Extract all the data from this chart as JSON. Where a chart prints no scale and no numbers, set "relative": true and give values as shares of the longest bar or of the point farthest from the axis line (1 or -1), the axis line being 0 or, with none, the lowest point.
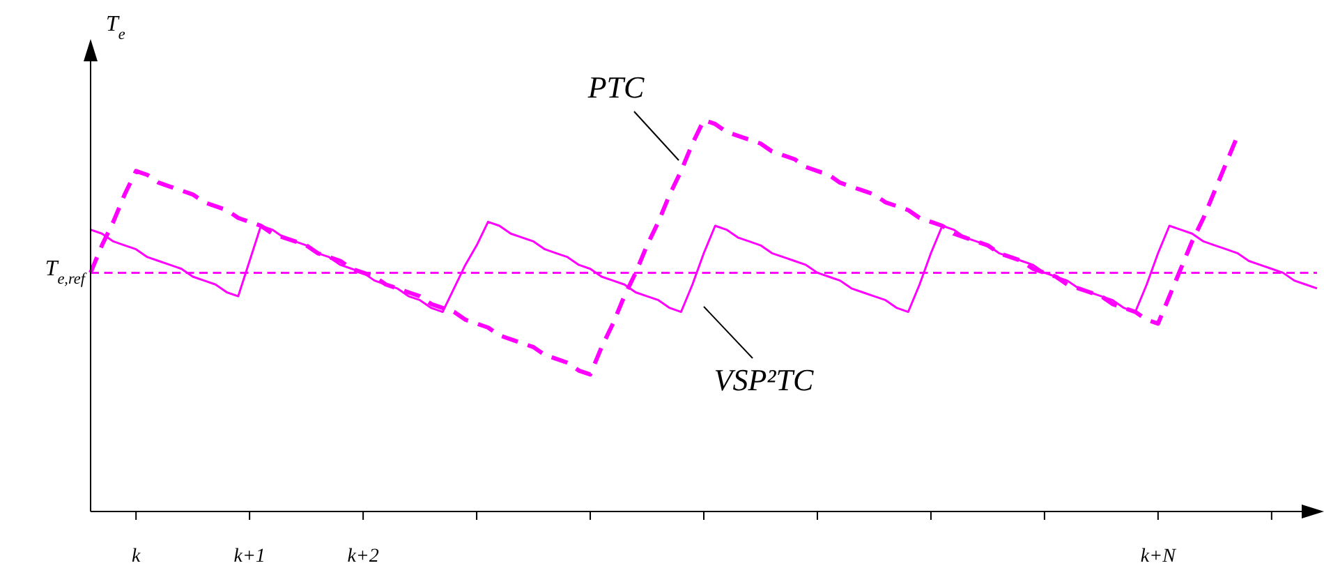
{
  "chart_data": {
    "type": "line",
    "relative": true,
    "ylabel": "T$_{e}$",
    "marker": "none",
    "categories": [
      null,
      null,
      null,
      null,
      "k",
      null,
      null,
      null,
      null,
      null,
      null,
      null,
      null,
      null,
      "k+1",
      null,
      null,
      null,
      null,
      null,
      null,
      null,
      null,
      null,
      "k+2",
      null,
      null,
      null,
      null,
      null,
      null,
      null,
      null,
      null,
      null,
      null,
      null,
      null,
      null,
      null,
      null,
      null,
      null,
      null,
      null,
      null,
      null,
      null,
      null,
      null,
      null,
      null,
      null,
      null,
      null,
      null,
      null,
      null,
      null,
      null,
      null,
      null,
      null,
      null,
      null,
      null,
      null,
      null,
      null,
      null,
      null,
      null,
      null,
      null,
      null,
      null,
      null,
      null,
      null,
      null,
      null,
      null,
      null,
      null,
      null,
      null,
      null,
      null,
      null,
      null,
      null,
      null,
      null,
      null,
      "k+N",
      null,
      null,
      null,
      null,
      null,
      null,
      null,
      null,
      null,
      null,
      null,
      null,
      null,
      null
    ],
    "series": [
      {
        "name": "PTC",
        "color": "#ff00ff",
        "line_style": "dashed",
        "values": [
          0.61,
          0.68,
          0.74,
          0.81,
          0.87,
          0.86,
          0.84,
          0.83,
          0.82,
          0.81,
          0.79,
          0.78,
          0.77,
          0.75,
          0.74,
          0.73,
          0.71,
          0.7,
          0.69,
          0.68,
          0.66,
          0.65,
          0.64,
          0.62,
          0.61,
          0.6,
          0.58,
          0.57,
          0.56,
          0.55,
          0.53,
          0.52,
          0.51,
          0.49,
          0.48,
          0.47,
          0.45,
          0.44,
          0.43,
          0.42,
          0.4,
          0.39,
          0.38,
          0.36,
          0.35,
          0.42,
          0.48,
          0.55,
          0.61,
          0.68,
          0.74,
          0.81,
          0.87,
          0.94,
          1.0,
          0.99,
          0.97,
          0.96,
          0.95,
          0.94,
          0.92,
          0.91,
          0.9,
          0.88,
          0.87,
          0.86,
          0.84,
          0.83,
          0.82,
          0.81,
          0.79,
          0.78,
          0.77,
          0.75,
          0.74,
          0.73,
          0.71,
          0.7,
          0.69,
          0.68,
          0.66,
          0.65,
          0.64,
          0.62,
          0.61,
          0.6,
          0.58,
          0.57,
          0.56,
          0.55,
          0.53,
          0.52,
          0.51,
          0.49,
          0.48,
          0.55,
          0.62,
          0.69,
          0.75,
          0.82,
          0.89,
          0.96,
          null,
          null,
          null,
          null,
          null,
          null,
          null
        ]
      },
      {
        "name": "VSP²TC",
        "color": "#ff00ff",
        "line_style": "solid",
        "values": [
          0.72,
          0.71,
          0.69,
          0.68,
          0.67,
          0.65,
          0.64,
          0.63,
          0.62,
          0.6,
          0.59,
          0.58,
          0.56,
          0.55,
          0.64,
          0.73,
          0.72,
          0.7,
          0.69,
          0.68,
          0.66,
          0.65,
          0.63,
          0.62,
          0.61,
          0.59,
          0.58,
          0.57,
          0.55,
          0.54,
          0.52,
          0.51,
          0.57,
          0.63,
          0.68,
          0.74,
          0.73,
          0.71,
          0.7,
          0.69,
          0.67,
          0.66,
          0.65,
          0.63,
          0.62,
          0.6,
          0.59,
          0.58,
          0.56,
          0.55,
          0.54,
          0.52,
          0.51,
          0.58,
          0.66,
          0.73,
          0.72,
          0.7,
          0.69,
          0.68,
          0.66,
          0.65,
          0.64,
          0.63,
          0.61,
          0.6,
          0.59,
          0.57,
          0.56,
          0.55,
          0.54,
          0.52,
          0.51,
          0.58,
          0.66,
          0.73,
          0.72,
          0.7,
          0.69,
          0.68,
          0.66,
          0.65,
          0.64,
          0.63,
          0.61,
          0.6,
          0.59,
          0.57,
          0.56,
          0.55,
          0.54,
          0.52,
          0.51,
          0.58,
          0.66,
          0.73,
          0.72,
          0.71,
          0.69,
          0.68,
          0.67,
          0.66,
          0.64,
          0.63,
          0.62,
          0.61,
          0.59,
          0.58,
          0.57
        ]
      }
    ],
    "ref_lines": [
      {
        "axis": "y",
        "value": 0.61,
        "label": "T$_{e,ref}$",
        "color": "#ff00ff",
        "line_style": "dashed"
      }
    ]
  }
}
